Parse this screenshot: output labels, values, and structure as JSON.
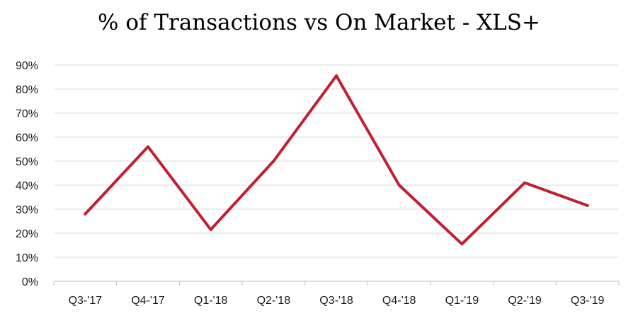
{
  "chart_data": {
    "type": "line",
    "title": "% of Transactions vs On Market - XLS+",
    "categories": [
      "Q3-'17",
      "Q4-'17",
      "Q1-'18",
      "Q2-'18",
      "Q3-'18",
      "Q4-'18",
      "Q1-'19",
      "Q2-'19",
      "Q3-'19"
    ],
    "series": [
      {
        "values": [
          28,
          56,
          21.5,
          50,
          85.5,
          40,
          15.5,
          41,
          31.5
        ],
        "color": "#C0202F"
      }
    ],
    "y_ticks": [
      "0%",
      "10%",
      "20%",
      "30%",
      "40%",
      "50%",
      "60%",
      "70%",
      "80%",
      "90%"
    ],
    "ylim": [
      0,
      90
    ],
    "grid": true,
    "legend": "none",
    "gridline_color": "#d9d9d9",
    "axis_color": "#bfbfbf"
  }
}
